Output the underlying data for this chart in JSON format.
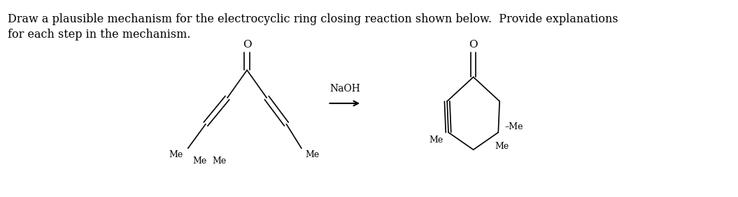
{
  "title_line1": "Draw a plausible mechanism for the electrocyclic ring closing reaction shown below.  Provide explanations",
  "title_line2": "for each step in the mechanism.",
  "title_fontsize": 11.5,
  "title_font": "serif",
  "bg_color": "#ffffff",
  "line_color": "#000000",
  "text_color": "#000000",
  "reagent": "NaOH"
}
